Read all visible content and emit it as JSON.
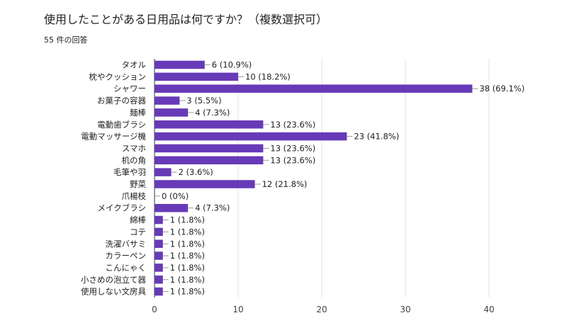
{
  "title": "使用したことがある日用品は何ですか？（複数選択可）",
  "response_count": "55 件の回答",
  "colors": {
    "bar": "#673ab7",
    "grid": "#e0e0e0",
    "axis": "#333333"
  },
  "chart_data": {
    "type": "bar",
    "orientation": "horizontal",
    "categories": [
      "タオル",
      "枕やクッション",
      "シャワー",
      "お菓子の容器",
      "麺棒",
      "電動歯ブラシ",
      "電動マッサージ機",
      "スマホ",
      "机の角",
      "毛筆や羽",
      "野菜",
      "爪楊枝",
      "メイクブラシ",
      "綿棒",
      "コテ",
      "洗濯バサミ",
      "カラーペン",
      "こんにゃく",
      "小さめの泡立て器",
      "使用しない文房具"
    ],
    "values": [
      6,
      10,
      38,
      3,
      4,
      13,
      23,
      13,
      13,
      2,
      12,
      0,
      4,
      1,
      1,
      1,
      1,
      1,
      1,
      1
    ],
    "data_labels": [
      "6 (10.9%)",
      "10 (18.2%)",
      "38 (69.1%)",
      "3 (5.5%)",
      "4 (7.3%)",
      "13 (23.6%)",
      "23 (41.8%)",
      "13 (23.6%)",
      "13 (23.6%)",
      "2 (3.6%)",
      "12 (21.8%)",
      "0 (0%)",
      "4 (7.3%)",
      "1 (1.8%)",
      "1 (1.8%)",
      "1 (1.8%)",
      "1 (1.8%)",
      "1 (1.8%)",
      "1 (1.8%)",
      "1 (1.8%)"
    ],
    "xlim": [
      0,
      40
    ],
    "xticks": [
      "0",
      "10",
      "20",
      "30",
      "40"
    ],
    "grid": true
  }
}
